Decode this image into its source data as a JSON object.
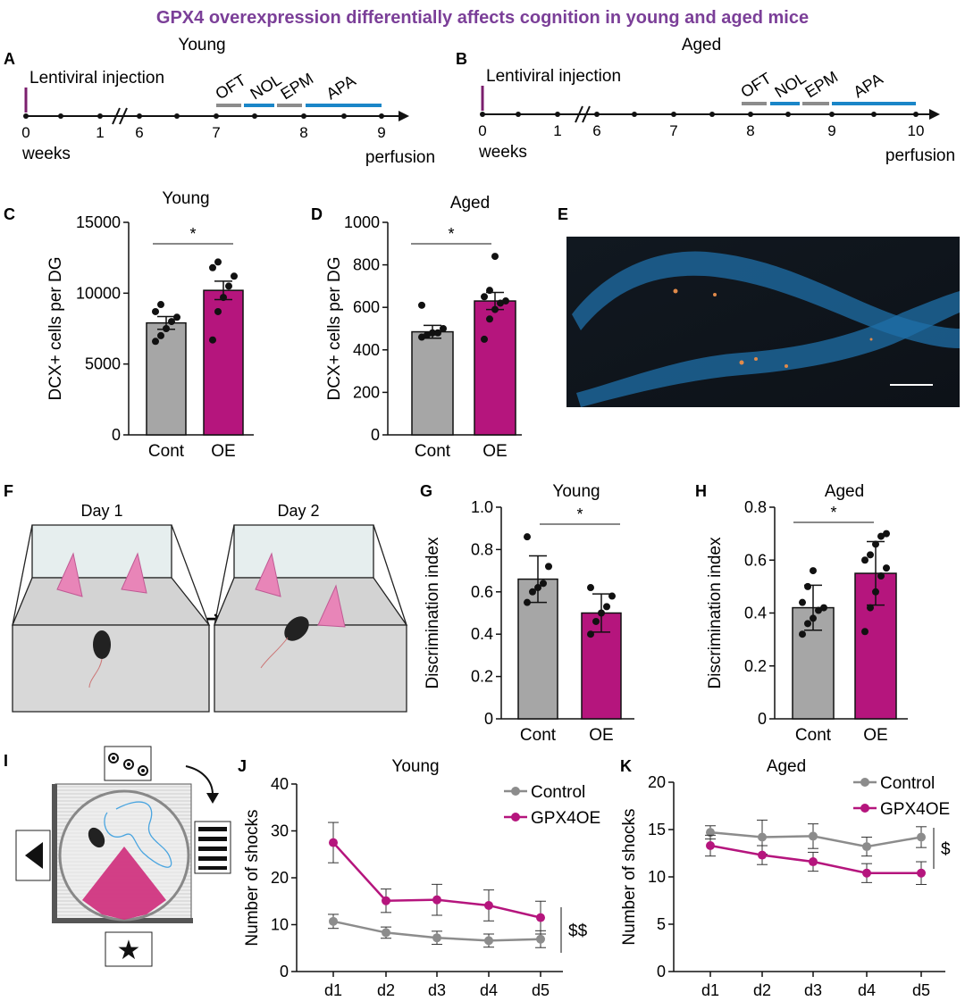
{
  "figure_title": "GPX4 overexpression differentially affects cognition in young and aged mice",
  "colors": {
    "title": "#7b3f98",
    "control": "#a6a6a6",
    "oe": "#b5157d",
    "line_control": "#8c8c8c",
    "line_oe": "#b5157d",
    "oft": "#8c8c8c",
    "nol": "#1a86c8",
    "epm": "#8c8c8c",
    "apa": "#1a86c8"
  },
  "panel_letters": {
    "A": "A",
    "B": "B",
    "C": "C",
    "D": "D",
    "E": "E",
    "F": "F",
    "G": "G",
    "H": "H",
    "I": "I",
    "J": "J",
    "K": "K"
  },
  "timeline_a": {
    "title": "Young",
    "injection_label": "Lentiviral injection",
    "ticks": [
      "0",
      "1",
      "6",
      "7",
      "8",
      "9"
    ],
    "start_label": "weeks",
    "end_label": "perfusion",
    "tests": [
      "OFT",
      "NOL",
      "EPM",
      "APA"
    ]
  },
  "timeline_b": {
    "title": "Aged",
    "injection_label": "Lentiviral injection",
    "ticks": [
      "0",
      "1",
      "6",
      "7",
      "8",
      "9",
      "10"
    ],
    "start_label": "weeks",
    "end_label": "perfusion",
    "tests": [
      "OFT",
      "NOL",
      "EPM",
      "APA"
    ]
  },
  "panel_e": {
    "scale_bar": true
  },
  "panel_f": {
    "day1": "Day 1",
    "day2": "Day 2"
  },
  "panel_i": {
    "description_icons": [
      "three-dots-cue",
      "stripes-cue",
      "triangle-cue",
      "star-cue"
    ]
  },
  "chart_data": [
    {
      "id": "C",
      "type": "bar",
      "title": "Young",
      "ylabel": "DCX+ cells per DG",
      "categories": [
        "Cont",
        "OE"
      ],
      "values": [
        7900,
        10200
      ],
      "errors": [
        450,
        650
      ],
      "ylim": [
        0,
        15000
      ],
      "yticks": [
        "0",
        "5000",
        "10000",
        "15000"
      ],
      "sig": "*",
      "points": [
        [
          6600,
          7000,
          7500,
          8000,
          8300,
          8700,
          9200
        ],
        [
          6700,
          8700,
          9700,
          10500,
          11200,
          11800,
          12200
        ]
      ]
    },
    {
      "id": "D",
      "type": "bar",
      "title": "Aged",
      "ylabel": "DCX+ cells per DG",
      "categories": [
        "Cont",
        "OE"
      ],
      "values": [
        485,
        630
      ],
      "errors": [
        30,
        40
      ],
      "ylim": [
        0,
        1000
      ],
      "yticks": [
        "0",
        "200",
        "400",
        "600",
        "800",
        "1000"
      ],
      "sig": "*",
      "points": [
        [
          460,
          470,
          480,
          480,
          500,
          610
        ],
        [
          450,
          545,
          590,
          620,
          630,
          650,
          680,
          840
        ]
      ]
    },
    {
      "id": "G",
      "type": "bar",
      "title": "Young",
      "ylabel": "Discrimination index",
      "categories": [
        "Cont",
        "OE"
      ],
      "values": [
        0.66,
        0.5
      ],
      "errors": [
        0.11,
        0.09
      ],
      "ylim": [
        0,
        1.0
      ],
      "yticks": [
        "0",
        "0.2",
        "0.4",
        "0.6",
        "0.8",
        "1.0"
      ],
      "sig": "*",
      "points": [
        [
          0.55,
          0.6,
          0.62,
          0.64,
          0.72,
          0.86
        ],
        [
          0.4,
          0.46,
          0.5,
          0.53,
          0.58,
          0.62
        ]
      ]
    },
    {
      "id": "H",
      "type": "bar",
      "title": "Aged",
      "ylabel": "Discrimination index",
      "categories": [
        "Cont",
        "OE"
      ],
      "values": [
        0.42,
        0.55
      ],
      "errors": [
        0.085,
        0.12
      ],
      "ylim": [
        0,
        0.8
      ],
      "yticks": [
        "0",
        "0.2",
        "0.4",
        "0.6",
        "0.8"
      ],
      "sig": "*",
      "points": [
        [
          0.32,
          0.36,
          0.38,
          0.41,
          0.42,
          0.44,
          0.5,
          0.56
        ],
        [
          0.33,
          0.42,
          0.48,
          0.54,
          0.57,
          0.6,
          0.62,
          0.66,
          0.69,
          0.7
        ]
      ]
    },
    {
      "id": "J",
      "type": "line",
      "title": "Young",
      "ylabel": "Number of shocks",
      "categories": [
        "d1",
        "d2",
        "d3",
        "d4",
        "d5"
      ],
      "ylim": [
        0,
        40
      ],
      "yticks": [
        "0",
        "10",
        "20",
        "30",
        "40"
      ],
      "sig": "$$",
      "series": [
        {
          "name": "Control",
          "values": [
            10.7,
            8.3,
            7.2,
            6.6,
            6.9
          ],
          "errors": [
            1.5,
            1.2,
            1.4,
            1.4,
            1.8
          ]
        },
        {
          "name": "GPX4OE",
          "values": [
            27.5,
            15.1,
            15.3,
            14.1,
            11.5
          ],
          "errors": [
            4.3,
            2.5,
            3.3,
            3.3,
            3.5
          ]
        }
      ]
    },
    {
      "id": "K",
      "type": "line",
      "title": "Aged",
      "ylabel": "Number of shocks",
      "categories": [
        "d1",
        "d2",
        "d3",
        "d4",
        "d5"
      ],
      "ylim": [
        0,
        20
      ],
      "yticks": [
        "0",
        "5",
        "10",
        "15",
        "20"
      ],
      "sig": "$",
      "series": [
        {
          "name": "Control",
          "values": [
            14.7,
            14.2,
            14.3,
            13.2,
            14.2
          ],
          "errors": [
            0.7,
            1.8,
            1.3,
            1.0,
            1.1
          ]
        },
        {
          "name": "GPX4OE",
          "values": [
            13.3,
            12.3,
            11.6,
            10.4,
            10.4
          ],
          "errors": [
            1.1,
            1.0,
            1.0,
            1.0,
            1.2
          ]
        }
      ]
    }
  ]
}
